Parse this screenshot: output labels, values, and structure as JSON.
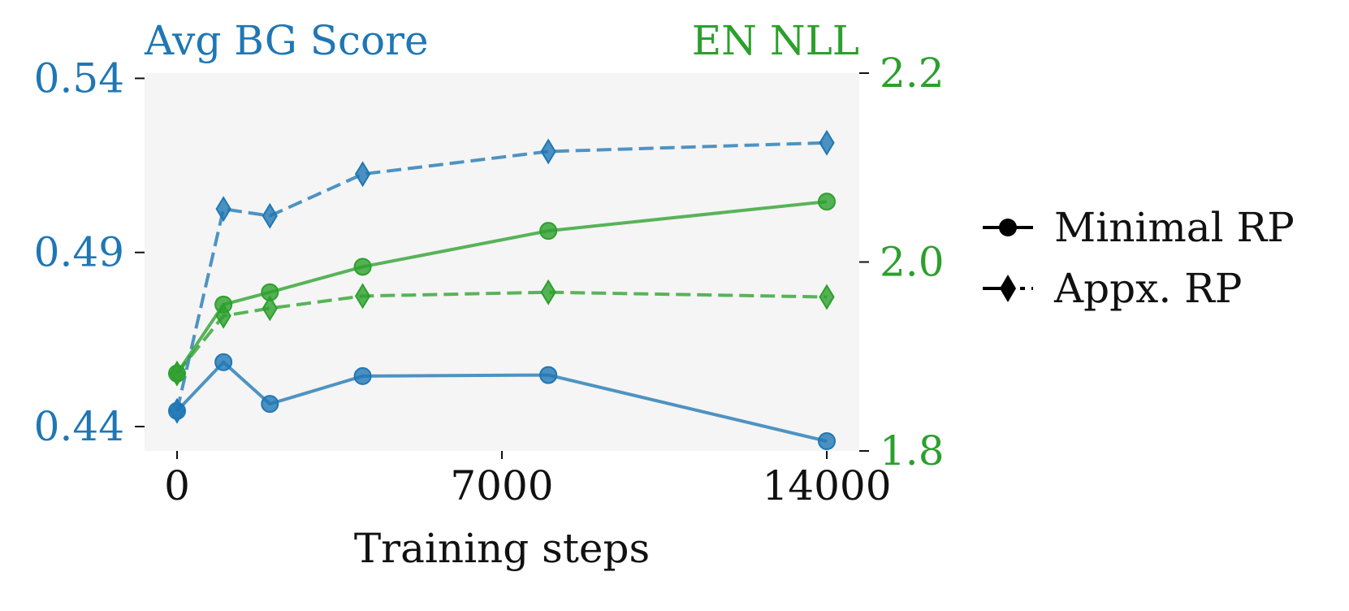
{
  "chart_data": {
    "type": "line",
    "left_axis_title": "Avg BG Score",
    "right_axis_title": "EN NLL",
    "xlabel": "Training steps",
    "x": [
      0,
      1000,
      2000,
      4000,
      8000,
      14000
    ],
    "xlim": [
      -700,
      14700
    ],
    "x_ticks": [
      "0",
      "7000",
      "14000"
    ],
    "x_tick_values": [
      0,
      7000,
      14000
    ],
    "y_left": {
      "lim": [
        0.433,
        0.5415
      ],
      "ticks": [
        "0.44",
        "0.49",
        "0.54"
      ],
      "tick_values": [
        0.44,
        0.49,
        0.54
      ],
      "color": "#1f77b4"
    },
    "y_right": {
      "lim": [
        1.8,
        2.2
      ],
      "ticks": [
        "1.8",
        "2.0",
        "2.2"
      ],
      "tick_values": [
        1.8,
        2.0,
        2.2
      ],
      "color": "#2ca02c"
    },
    "series": [
      {
        "metric": "Avg BG Score",
        "axis": "left",
        "style": "solid",
        "marker": "circle",
        "color": "#1f77b4",
        "values": [
          0.4445,
          0.4585,
          0.4465,
          0.4545,
          0.4548,
          0.4358
        ]
      },
      {
        "metric": "Avg BG Score",
        "axis": "left",
        "style": "dashed",
        "marker": "diamond",
        "color": "#1f77b4",
        "values": [
          0.4445,
          0.5025,
          0.5005,
          0.5125,
          0.519,
          0.5215
        ]
      },
      {
        "metric": "EN NLL",
        "axis": "right",
        "style": "solid",
        "marker": "circle",
        "color": "#2ca02c",
        "values": [
          1.882,
          1.955,
          1.968,
          1.995,
          2.033,
          2.064
        ]
      },
      {
        "metric": "EN NLL",
        "axis": "right",
        "style": "dashed",
        "marker": "diamond",
        "color": "#2ca02c",
        "values": [
          1.882,
          1.943,
          1.951,
          1.964,
          1.968,
          1.963
        ]
      }
    ],
    "legend": {
      "placement": "right",
      "entries": [
        {
          "label": "Minimal RP",
          "marker": "circle",
          "style": "solid"
        },
        {
          "label": "Appx. RP",
          "marker": "diamond",
          "style": "dashed"
        }
      ]
    },
    "grid": false,
    "plot_background": "#f5f5f5"
  }
}
